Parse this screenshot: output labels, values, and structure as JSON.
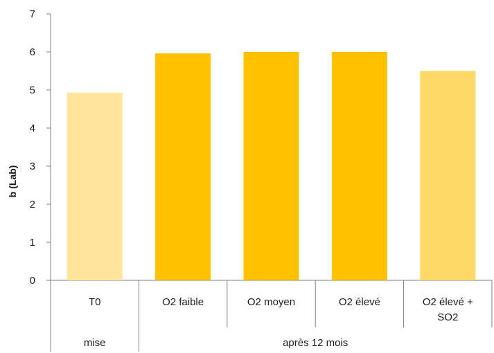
{
  "chart_data": {
    "type": "bar",
    "ylabel": "b (Lab)",
    "ylim": [
      0,
      7
    ],
    "yticks": [
      "0",
      "1",
      "2",
      "3",
      "4",
      "5",
      "6",
      "7"
    ],
    "grid": false,
    "categories": [
      {
        "lines": [
          "T0"
        ],
        "value": 4.93,
        "color": "#FFE59A"
      },
      {
        "lines": [
          "O2 faible"
        ],
        "value": 5.96,
        "color": "#FFC000"
      },
      {
        "lines": [
          "O2 moyen"
        ],
        "value": 6.0,
        "color": "#FFC000"
      },
      {
        "lines": [
          "O2 élevé"
        ],
        "value": 6.0,
        "color": "#FFC000"
      },
      {
        "lines": [
          "O2 élevé +",
          "SO2"
        ],
        "value": 5.5,
        "color": "#FFD966"
      }
    ],
    "groups": [
      {
        "label": "mise",
        "span": [
          0,
          0
        ]
      },
      {
        "label": "après 12 mois",
        "span": [
          1,
          4
        ]
      }
    ]
  }
}
